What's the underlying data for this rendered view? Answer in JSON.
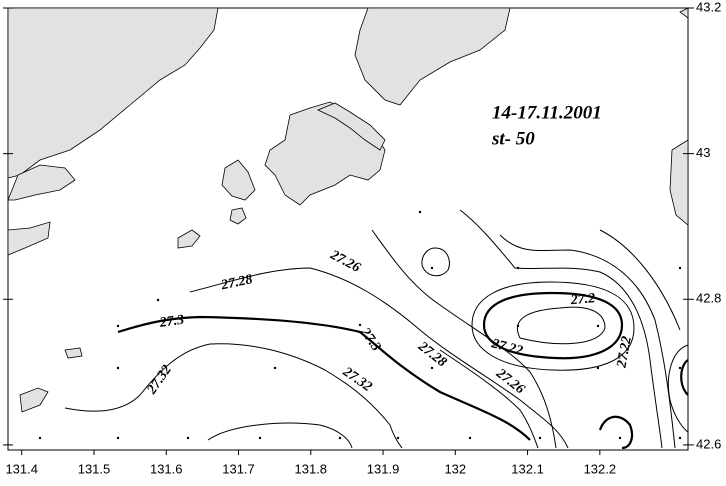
{
  "chart_data": {
    "type": "contour",
    "annotations": [
      "14-17.11.2001",
      "st- 50"
    ],
    "xlim": [
      131.381,
      132.322
    ],
    "ylim": [
      42.593,
      43.2
    ],
    "xticks": [
      131.4,
      131.5,
      131.6,
      131.7,
      131.8,
      131.9,
      132,
      132.1,
      132.2
    ],
    "yticks": [
      42.6,
      42.8,
      43,
      43.2
    ],
    "contour_labels": [
      27.26,
      27.28,
      27.3,
      27.32,
      27.3,
      27.28,
      27.32,
      27.26,
      27.22,
      27.2,
      27.22
    ]
  }
}
